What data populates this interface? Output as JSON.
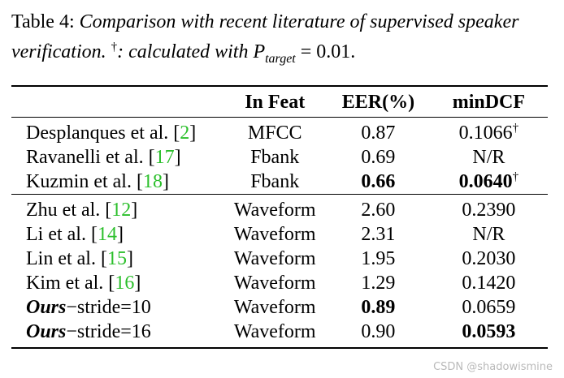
{
  "caption": {
    "label": "Table 4:",
    "text": "Comparison with recent literature of supervised speaker verification.",
    "dagger": "†",
    "note": ": calculated with",
    "math_var": "P",
    "math_sub": "target",
    "math_eq": " = ",
    "math_val": "0.01",
    "end": "."
  },
  "table": {
    "headers": [
      "",
      "In Feat",
      "EER(%)",
      "minDCF"
    ],
    "rows": [
      {
        "method": "Desplanques et al. [",
        "cite": "2",
        "method_end": "]",
        "ours": "",
        "suffix": "",
        "feat": "MFCC",
        "eer": "0.87",
        "dcf": "0.1066",
        "dcf_mark": "†"
      },
      {
        "method": "Ravanelli et al. [",
        "cite": "17",
        "method_end": "]",
        "ours": "",
        "suffix": "",
        "feat": "Fbank",
        "eer": "0.69",
        "dcf": "N/R",
        "dcf_mark": ""
      },
      {
        "method": "Kuzmin et al. [",
        "cite": "18",
        "method_end": "]",
        "ours": "",
        "suffix": "",
        "feat": "Fbank",
        "eer": "0.66",
        "dcf": "0.0640",
        "dcf_mark": "†"
      },
      {
        "method": "Zhu et al. [",
        "cite": "12",
        "method_end": "]",
        "ours": "",
        "suffix": "",
        "feat": "Waveform",
        "eer": "2.60",
        "dcf": "0.2390",
        "dcf_mark": ""
      },
      {
        "method": "Li et al. [",
        "cite": "14",
        "method_end": "]",
        "ours": "",
        "suffix": "",
        "feat": "Waveform",
        "eer": "2.31",
        "dcf": "N/R",
        "dcf_mark": ""
      },
      {
        "method": "Lin et al. [",
        "cite": "15",
        "method_end": "]",
        "ours": "",
        "suffix": "",
        "feat": "Waveform",
        "eer": "1.95",
        "dcf": "0.2030",
        "dcf_mark": ""
      },
      {
        "method": "Kim et al. [",
        "cite": "16",
        "method_end": "]",
        "ours": "",
        "suffix": "",
        "feat": "Waveform",
        "eer": "1.29",
        "dcf": "0.1420",
        "dcf_mark": ""
      },
      {
        "method": "",
        "cite": "",
        "method_end": "",
        "ours": "Ours",
        "suffix": "−stride=10",
        "feat": "Waveform",
        "eer": "0.89",
        "dcf": "0.0659",
        "dcf_mark": ""
      },
      {
        "method": "",
        "cite": "",
        "method_end": "",
        "ours": "Ours",
        "suffix": "−stride=16",
        "feat": "Waveform",
        "eer": "0.90",
        "dcf": "0.0593",
        "dcf_mark": ""
      }
    ]
  },
  "watermark": "CSDN @shadowismine"
}
